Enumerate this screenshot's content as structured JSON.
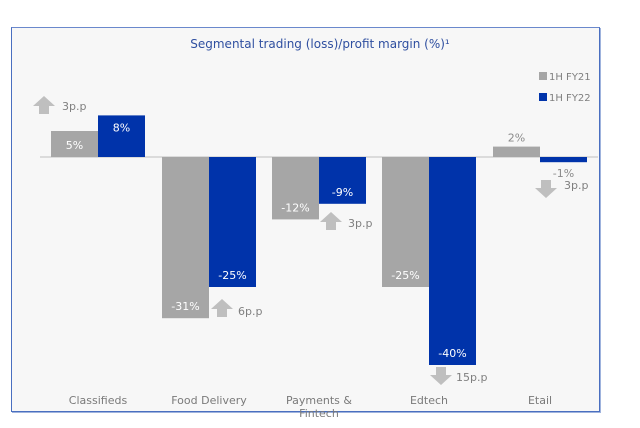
{
  "chart_data": {
    "type": "bar",
    "title": "Segmental trading (loss)/profit margin (%)¹",
    "xlabel": "",
    "ylabel": "",
    "ylim": [
      -40,
      8
    ],
    "grid": false,
    "legend_position": "top-right",
    "categories": [
      "Classifieds",
      "Food Delivery",
      "Payments & Fintech",
      "Edtech",
      "Etail"
    ],
    "category_lines": [
      [
        "Classifieds"
      ],
      [
        "Food Delivery"
      ],
      [
        "Payments &",
        "Fintech"
      ],
      [
        "Edtech"
      ],
      [
        "Etail"
      ]
    ],
    "series": [
      {
        "name": "1H FY21",
        "color": "#a6a6a6",
        "values": [
          5,
          -31,
          -12,
          -25,
          2
        ],
        "labels": [
          "5%",
          "-31%",
          "-12%",
          "-25%",
          "2%"
        ]
      },
      {
        "name": "1H FY22",
        "color": "#0033aa",
        "values": [
          8,
          -25,
          -9,
          -40,
          -1
        ],
        "labels": [
          "8%",
          "-25%",
          "-9%",
          "-40%",
          "-1%"
        ]
      }
    ],
    "annotations": [
      {
        "category": "Classifieds",
        "direction": "up",
        "text": "3p.p"
      },
      {
        "category": "Food Delivery",
        "direction": "up",
        "text": "6p.p"
      },
      {
        "category": "Payments & Fintech",
        "direction": "up",
        "text": "3p.p"
      },
      {
        "category": "Edtech",
        "direction": "down",
        "text": "15p.p"
      },
      {
        "category": "Etail",
        "direction": "down",
        "text": "3p.p"
      }
    ]
  }
}
